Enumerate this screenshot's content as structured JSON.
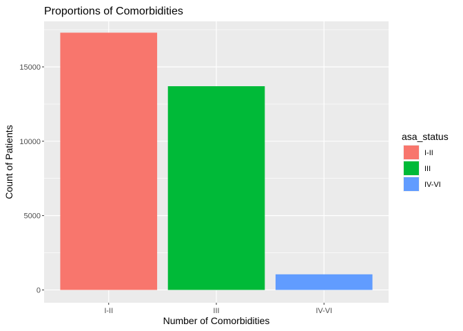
{
  "chart_data": {
    "type": "bar",
    "title": "Proportions of Comorbidities",
    "xlabel": "Number of Comorbidities",
    "ylabel": "Count of Patients",
    "categories": [
      "I-II",
      "III",
      "IV-VI"
    ],
    "values": [
      17300,
      13700,
      1050
    ],
    "colors": [
      "#F8766D",
      "#00BA38",
      "#619CFF"
    ],
    "ylim": [
      -860,
      18060
    ],
    "yticks": [
      0,
      5000,
      10000,
      15000
    ],
    "ytick_labels": [
      "0",
      "5000",
      "10000",
      "15000"
    ],
    "grid": true,
    "panel_background": "#EBEBEB",
    "legend": {
      "title": "asa_status",
      "placement": "right",
      "entries": [
        "I-II",
        "III",
        "IV-VI"
      ]
    }
  }
}
